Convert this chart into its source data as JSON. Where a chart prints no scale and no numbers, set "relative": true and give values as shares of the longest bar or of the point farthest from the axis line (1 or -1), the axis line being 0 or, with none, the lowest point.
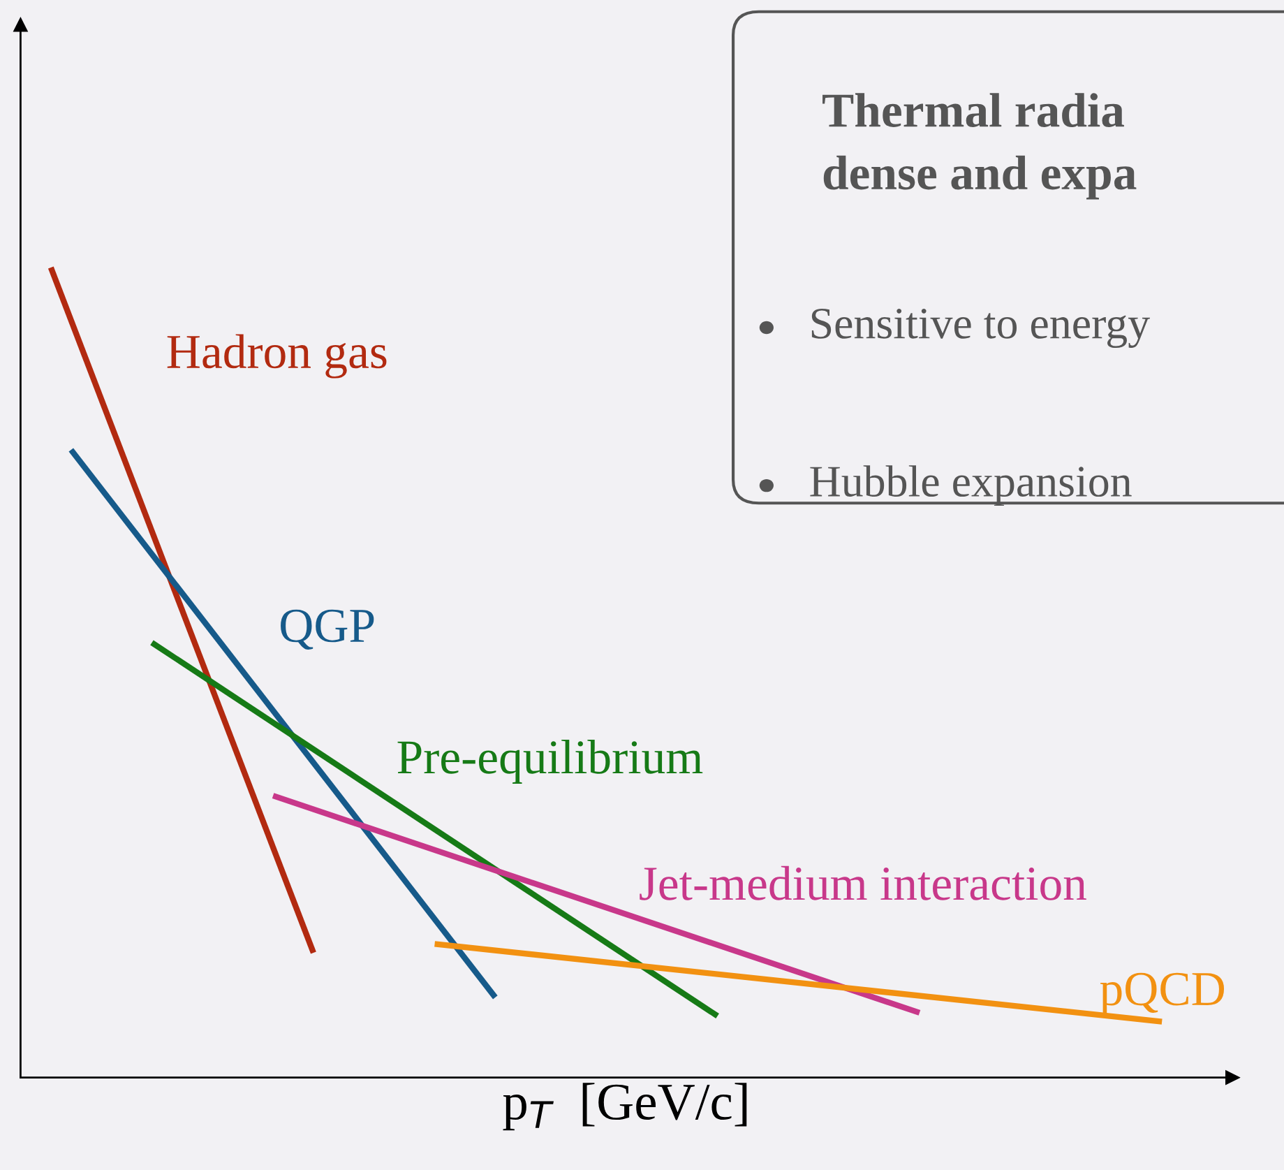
{
  "chart_data": {
    "type": "line",
    "relative": true,
    "title": "Thermal radia\ndense and expa",
    "xlabel": "p$_{T}$  [GeV/c]",
    "categories": [
      null,
      null,
      null,
      null,
      null,
      null,
      null,
      null,
      null,
      null,
      null,
      null,
      null,
      null,
      null,
      null,
      null,
      null,
      null,
      null,
      null,
      null,
      null,
      null,
      null,
      null,
      null,
      null,
      null,
      null,
      null,
      null,
      null,
      null,
      null,
      null,
      null,
      null,
      null,
      null,
      null,
      null,
      null,
      null,
      null,
      null,
      null,
      null,
      null,
      null,
      null,
      null,
      null,
      null,
      null,
      null,
      null,
      null,
      null,
      null
    ],
    "series": [
      {
        "name": "Hadron gas",
        "color": "#b22a10",
        "values": [
          null,
          1.0,
          null,
          null,
          null,
          null,
          null,
          null,
          null,
          null,
          null,
          null,
          null,
          null,
          0.154,
          null,
          null,
          null,
          null,
          null,
          null,
          null,
          null,
          null,
          null,
          null,
          null,
          null,
          null,
          null,
          null,
          null,
          null,
          null,
          null,
          null,
          null,
          null,
          null,
          null,
          null,
          null,
          null,
          null,
          null,
          null,
          null,
          null,
          null,
          null,
          null,
          null,
          null,
          null,
          null,
          null,
          null,
          null,
          null,
          null
        ]
      },
      {
        "name": "QGP",
        "color": "#165a8a",
        "values": [
          null,
          null,
          0.775,
          null,
          null,
          null,
          null,
          null,
          null,
          null,
          null,
          null,
          null,
          null,
          null,
          null,
          null,
          null,
          null,
          null,
          null,
          null,
          null,
          0.099,
          null,
          null,
          null,
          null,
          null,
          null,
          null,
          null,
          null,
          null,
          null,
          null,
          null,
          null,
          null,
          null,
          null,
          null,
          null,
          null,
          null,
          null,
          null,
          null,
          null,
          null,
          null,
          null,
          null,
          null,
          null,
          null,
          null,
          null,
          null,
          null
        ]
      },
      {
        "name": "Pre-equilibrium",
        "color": "#167a16",
        "values": [
          null,
          null,
          null,
          null,
          null,
          null,
          0.537,
          null,
          null,
          null,
          null,
          null,
          null,
          null,
          null,
          null,
          null,
          null,
          null,
          null,
          null,
          null,
          null,
          null,
          null,
          null,
          null,
          null,
          null,
          null,
          null,
          null,
          null,
          null,
          0.076,
          null,
          null,
          null,
          null,
          null,
          null,
          null,
          null,
          null,
          null,
          null,
          null,
          null,
          null,
          null,
          null,
          null,
          null,
          null,
          null,
          null,
          null,
          null,
          null,
          null
        ]
      },
      {
        "name": "Jet-medium interaction",
        "color": "#c8388a",
        "values": [
          null,
          null,
          null,
          null,
          null,
          null,
          null,
          null,
          null,
          null,
          null,
          null,
          0.348,
          null,
          null,
          null,
          null,
          null,
          null,
          null,
          null,
          null,
          null,
          null,
          null,
          null,
          null,
          null,
          null,
          null,
          null,
          null,
          null,
          null,
          null,
          null,
          null,
          null,
          null,
          null,
          null,
          null,
          null,
          null,
          0.08,
          null,
          null,
          null,
          null,
          null,
          null,
          null,
          null,
          null,
          null,
          null,
          null,
          null,
          null,
          null
        ]
      },
      {
        "name": "pQCD",
        "color": "#f29111",
        "values": [
          null,
          null,
          null,
          null,
          null,
          null,
          null,
          null,
          null,
          null,
          null,
          null,
          null,
          null,
          null,
          null,
          null,
          null,
          null,
          null,
          0.165,
          null,
          null,
          null,
          null,
          null,
          null,
          null,
          null,
          null,
          null,
          null,
          null,
          null,
          null,
          null,
          null,
          null,
          null,
          null,
          null,
          null,
          null,
          null,
          null,
          null,
          null,
          null,
          null,
          null,
          null,
          null,
          null,
          null,
          null,
          null,
          0.069,
          null,
          null,
          null
        ]
      }
    ],
    "annotations": [
      "Sensitive to energy",
      "Hubble expansion"
    ],
    "line_style": "solid"
  }
}
